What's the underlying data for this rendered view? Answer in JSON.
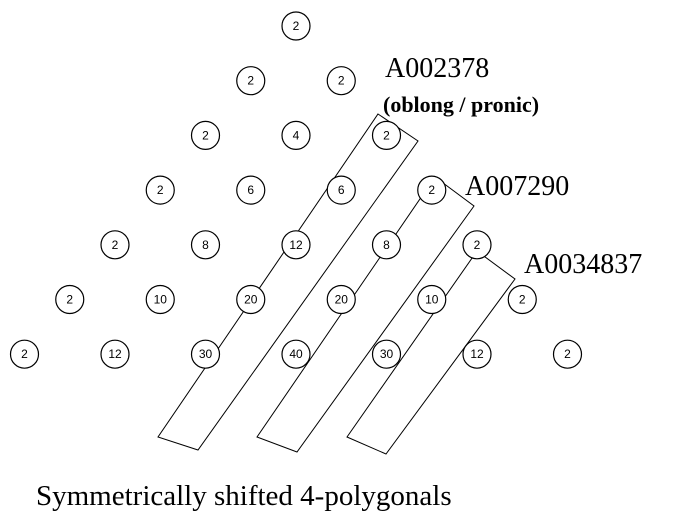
{
  "triangle": {
    "rows": [
      [
        "2"
      ],
      [
        "2",
        "2"
      ],
      [
        "2",
        "4",
        "2"
      ],
      [
        "2",
        "6",
        "6",
        "2"
      ],
      [
        "2",
        "8",
        "12",
        "8",
        "2"
      ],
      [
        "2",
        "10",
        "20",
        "20",
        "10",
        "2"
      ],
      [
        "2",
        "12",
        "30",
        "40",
        "30",
        "12",
        "2"
      ]
    ]
  },
  "labels": {
    "seq1_id": "A002378",
    "seq1_desc": "(oblong / pronic)",
    "seq2_id": "A007290",
    "seq3_id": "A0034837"
  },
  "caption": "Symmetrically shifted 4-polygonals"
}
